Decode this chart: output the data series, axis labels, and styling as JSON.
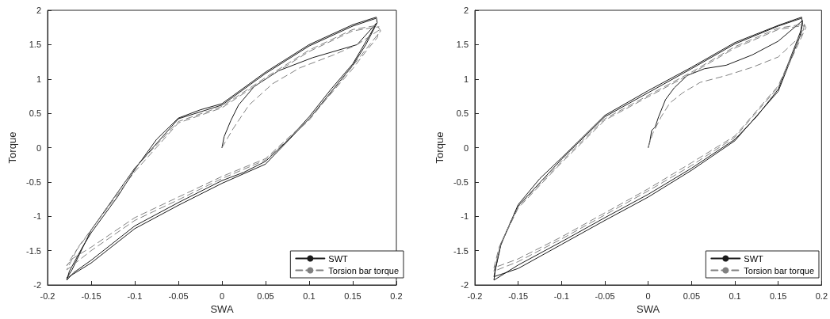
{
  "chart_data": [
    {
      "type": "line",
      "xlabel": "SWA",
      "ylabel": "Torque",
      "xlim": [
        -0.2,
        0.2
      ],
      "xticks": [
        -0.2,
        -0.15,
        -0.1,
        -0.05,
        0,
        0.05,
        0.1,
        0.15,
        0.2
      ],
      "ylim": [
        -2,
        2
      ],
      "yticks": [
        -2,
        -1.5,
        -1,
        -0.5,
        0,
        0.5,
        1,
        1.5,
        2
      ],
      "grid": false,
      "legend": "bottom right",
      "marker": "none",
      "series": [
        {
          "name": "SWT",
          "color": "#1a1a1a",
          "line_style": "solid",
          "x": [
            0,
            0.0025,
            0.01,
            0.019,
            0.037,
            0.065,
            0.104,
            0.155,
            0.177,
            0.17,
            0.15,
            0.125,
            0.1,
            0.075,
            0.05,
            0.025,
            0,
            -0.05,
            -0.1,
            -0.15,
            -0.17,
            -0.178,
            -0.175,
            -0.16,
            -0.15,
            -0.12,
            -0.1,
            -0.075,
            -0.05,
            -0.025,
            0,
            0.05,
            0.1,
            0.15,
            0.177,
            0.178,
            0.165,
            0.15,
            0.1,
            0.05,
            0,
            -0.05,
            -0.1,
            -0.15,
            -0.178,
            -0.172,
            -0.15,
            -0.1,
            -0.05,
            0,
            0.05,
            0.1,
            0.15,
            0.176
          ],
          "values": [
            0,
            0.16,
            0.39,
            0.62,
            0.89,
            1.12,
            1.31,
            1.5,
            1.81,
            1.65,
            1.22,
            0.85,
            0.45,
            0.1,
            -0.2,
            -0.36,
            -0.48,
            -0.8,
            -1.14,
            -1.64,
            -1.82,
            -1.93,
            -1.8,
            -1.45,
            -1.24,
            -0.72,
            -0.32,
            0.12,
            0.43,
            0.55,
            0.64,
            1.1,
            1.5,
            1.79,
            1.9,
            1.82,
            1.5,
            1.2,
            0.42,
            -0.24,
            -0.52,
            -0.84,
            -1.18,
            -1.68,
            -1.9,
            -1.78,
            -1.2,
            -0.3,
            0.42,
            0.62,
            1.08,
            1.48,
            1.77,
            1.88
          ]
        },
        {
          "name": "Torsion bar torque",
          "color": "#808080",
          "line_style": "dashed",
          "x": [
            0,
            0.013,
            0.031,
            0.058,
            0.089,
            0.128,
            0.155,
            0.18,
            0.178,
            0.165,
            0.15,
            0.1,
            0.05,
            0,
            -0.05,
            -0.1,
            -0.15,
            -0.172,
            -0.178,
            -0.17,
            -0.15,
            -0.1,
            -0.05,
            0,
            0.05,
            0.1,
            0.15,
            0.178,
            0.182,
            0.16,
            0.1,
            0.05,
            0,
            -0.05,
            -0.1,
            -0.15,
            -0.178,
            -0.165,
            -0.1,
            -0.05,
            0,
            0.05,
            0.1,
            0.15,
            0.18
          ],
          "values": [
            0,
            0.28,
            0.62,
            0.93,
            1.16,
            1.35,
            1.5,
            1.71,
            1.6,
            1.4,
            1.15,
            0.42,
            -0.16,
            -0.42,
            -0.72,
            -1.02,
            -1.45,
            -1.62,
            -1.72,
            -1.55,
            -1.2,
            -0.3,
            0.38,
            0.6,
            1.02,
            1.42,
            1.72,
            1.78,
            1.7,
            1.35,
            0.4,
            -0.18,
            -0.45,
            -0.76,
            -1.06,
            -1.5,
            -1.78,
            -1.45,
            -0.35,
            0.36,
            0.58,
            1.0,
            1.4,
            1.7,
            1.76
          ]
        }
      ]
    },
    {
      "type": "line",
      "xlabel": "SWA",
      "ylabel": "Torque",
      "xlim": [
        -0.2,
        0.2
      ],
      "xticks": [
        -0.2,
        -0.15,
        -0.1,
        -0.05,
        0,
        0.05,
        0.1,
        0.15,
        0.2
      ],
      "ylim": [
        -2,
        2
      ],
      "yticks": [
        -2,
        -1.5,
        -1,
        -0.5,
        0,
        0.5,
        1,
        1.5,
        2
      ],
      "grid": false,
      "legend": "bottom right",
      "marker": "none",
      "series": [
        {
          "name": "SWT",
          "color": "#1a1a1a",
          "line_style": "solid",
          "x": [
            0,
            0.002,
            0.004,
            0.008,
            0.012,
            0.02,
            0.03,
            0.045,
            0.065,
            0.09,
            0.12,
            0.15,
            0.178,
            0.176,
            0.17,
            0.15,
            0.125,
            0.1,
            0.05,
            0,
            -0.05,
            -0.1,
            -0.15,
            -0.178,
            -0.176,
            -0.17,
            -0.16,
            -0.15,
            -0.125,
            -0.1,
            -0.05,
            0,
            0.05,
            0.1,
            0.15,
            0.177,
            0.178,
            0.175,
            0.15,
            0.1,
            0.05,
            0,
            -0.05,
            -0.1,
            -0.15,
            -0.178,
            -0.17,
            -0.15,
            -0.1,
            -0.05,
            0,
            0.05,
            0.1,
            0.15,
            0.176
          ],
          "values": [
            0,
            0.1,
            0.25,
            0.3,
            0.45,
            0.7,
            0.87,
            1.05,
            1.15,
            1.2,
            1.35,
            1.55,
            1.85,
            1.7,
            1.5,
            0.85,
            0.45,
            0.12,
            -0.3,
            -0.68,
            -1.02,
            -1.37,
            -1.71,
            -1.93,
            -1.75,
            -1.42,
            -1.12,
            -0.83,
            -0.45,
            -0.15,
            0.47,
            0.83,
            1.17,
            1.53,
            1.78,
            1.9,
            1.8,
            1.62,
            0.82,
            0.1,
            -0.33,
            -0.72,
            -1.06,
            -1.41,
            -1.76,
            -1.88,
            -1.4,
            -0.85,
            -0.17,
            0.45,
            0.8,
            1.15,
            1.51,
            1.77,
            1.88
          ]
        },
        {
          "name": "Torsion bar torque",
          "color": "#808080",
          "line_style": "dashed",
          "x": [
            0,
            0.005,
            0.015,
            0.025,
            0.04,
            0.06,
            0.09,
            0.12,
            0.15,
            0.178,
            0.18,
            0.175,
            0.15,
            0.1,
            0.05,
            0,
            -0.05,
            -0.1,
            -0.15,
            -0.178,
            -0.172,
            -0.16,
            -0.15,
            -0.1,
            -0.05,
            0,
            0.05,
            0.1,
            0.15,
            0.18,
            0.182,
            0.15,
            0.1,
            0.05,
            0,
            -0.05,
            -0.1,
            -0.15,
            -0.178,
            -0.17,
            -0.15,
            -0.1,
            -0.05,
            0,
            0.05,
            0.1,
            0.15,
            0.18
          ],
          "values": [
            0,
            0.2,
            0.45,
            0.65,
            0.8,
            0.95,
            1.05,
            1.17,
            1.32,
            1.65,
            1.78,
            1.6,
            0.9,
            0.17,
            -0.22,
            -0.6,
            -0.95,
            -1.3,
            -1.62,
            -1.75,
            -1.45,
            -1.12,
            -0.86,
            -0.2,
            0.42,
            0.76,
            1.1,
            1.47,
            1.74,
            1.8,
            1.75,
            0.88,
            0.15,
            -0.26,
            -0.63,
            -0.98,
            -1.33,
            -1.66,
            -1.8,
            -1.4,
            -0.88,
            -0.22,
            0.4,
            0.74,
            1.08,
            1.45,
            1.72,
            1.78
          ]
        }
      ]
    }
  ]
}
